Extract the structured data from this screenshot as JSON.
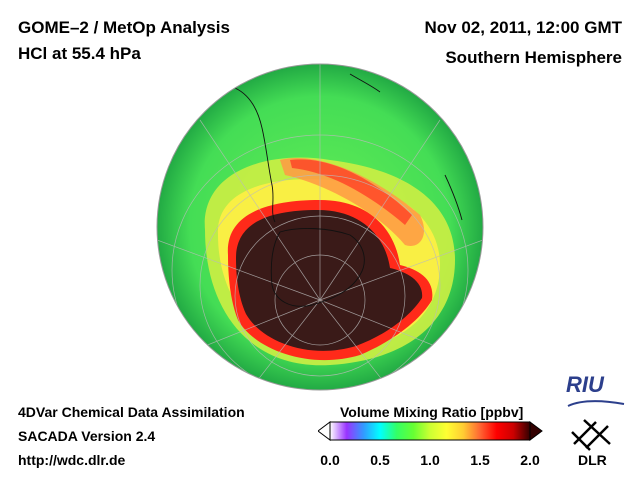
{
  "header": {
    "instrument_title": "GOME–2 / MetOp Analysis",
    "species_level": "HCl at 55.4 hPa",
    "datetime": "Nov 02, 2011, 12:00 GMT",
    "region": "Southern Hemisphere"
  },
  "footer": {
    "line1": "4DVar Chemical Data Assimilation",
    "line2": "SACADA Version 2.4",
    "line3": "http://wdc.dlr.de"
  },
  "colorbar": {
    "title": "Volume Mixing Ratio [ppbv]",
    "min": 0.0,
    "max": 2.0,
    "ticks": [
      "0.0",
      "0.5",
      "1.0",
      "1.5",
      "2.0"
    ],
    "colors": [
      "#ffffff",
      "#9933ff",
      "#3399ff",
      "#00ffff",
      "#33ff66",
      "#66ff33",
      "#ccff33",
      "#ffff33",
      "#ffcc33",
      "#ff6633",
      "#ff0000",
      "#cc0000",
      "#330000"
    ]
  },
  "map": {
    "projection": "orthographic-south-polar",
    "field_colors": {
      "background_low": "#33dd55",
      "mid": "#ccee33",
      "high_band": "#ffee33",
      "rim": "#ff3322",
      "vortex_core": "#3a1a18"
    }
  },
  "logos": {
    "riu_text": "RIU",
    "dlr_text": "DLR"
  }
}
